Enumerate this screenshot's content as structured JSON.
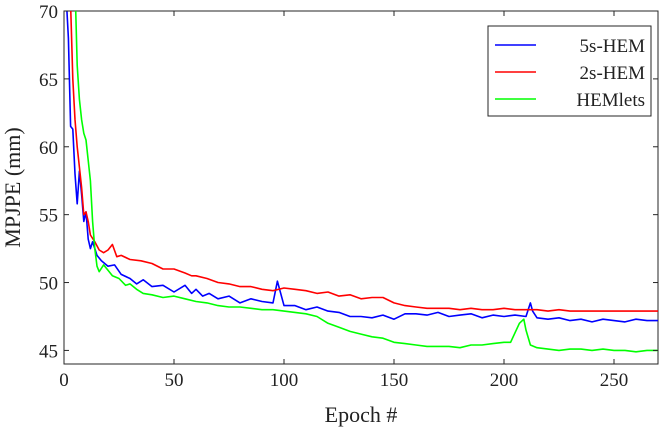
{
  "chart_data": {
    "type": "line",
    "xlabel": "Epoch #",
    "ylabel": "MPJPE (mm)",
    "xlim": [
      0,
      270
    ],
    "ylim": [
      44,
      70
    ],
    "xticks": [
      0,
      50,
      100,
      150,
      200,
      250
    ],
    "yticks": [
      45,
      50,
      55,
      60,
      65,
      70
    ],
    "grid": false,
    "legend_position": "top-right",
    "series": [
      {
        "name": "5s-HEM",
        "color": "#0000ff",
        "points": [
          [
            1,
            71
          ],
          [
            2,
            68
          ],
          [
            3,
            61.5
          ],
          [
            4,
            61.3
          ],
          [
            5,
            58
          ],
          [
            6,
            55.8
          ],
          [
            7,
            58.2
          ],
          [
            8,
            56.5
          ],
          [
            9,
            54.5
          ],
          [
            10,
            55.2
          ],
          [
            11,
            53.2
          ],
          [
            12,
            52.5
          ],
          [
            13,
            53
          ],
          [
            15,
            52
          ],
          [
            17,
            51.6
          ],
          [
            20,
            51.2
          ],
          [
            23,
            51.3
          ],
          [
            26,
            50.6
          ],
          [
            30,
            50.3
          ],
          [
            33,
            49.9
          ],
          [
            36,
            50.2
          ],
          [
            40,
            49.7
          ],
          [
            45,
            49.8
          ],
          [
            50,
            49.3
          ],
          [
            55,
            49.8
          ],
          [
            58,
            49.2
          ],
          [
            60,
            49.5
          ],
          [
            63,
            49
          ],
          [
            66,
            49.2
          ],
          [
            70,
            48.8
          ],
          [
            75,
            49
          ],
          [
            80,
            48.5
          ],
          [
            85,
            48.8
          ],
          [
            90,
            48.6
          ],
          [
            95,
            48.5
          ],
          [
            97,
            50.1
          ],
          [
            100,
            48.3
          ],
          [
            105,
            48.3
          ],
          [
            110,
            48
          ],
          [
            115,
            48.2
          ],
          [
            120,
            47.9
          ],
          [
            125,
            47.8
          ],
          [
            130,
            47.5
          ],
          [
            135,
            47.5
          ],
          [
            140,
            47.4
          ],
          [
            145,
            47.6
          ],
          [
            150,
            47.3
          ],
          [
            155,
            47.7
          ],
          [
            160,
            47.7
          ],
          [
            165,
            47.6
          ],
          [
            170,
            47.8
          ],
          [
            175,
            47.5
          ],
          [
            180,
            47.6
          ],
          [
            185,
            47.7
          ],
          [
            190,
            47.4
          ],
          [
            195,
            47.6
          ],
          [
            200,
            47.5
          ],
          [
            205,
            47.6
          ],
          [
            210,
            47.5
          ],
          [
            212,
            48.5
          ],
          [
            213,
            47.9
          ],
          [
            215,
            47.4
          ],
          [
            220,
            47.3
          ],
          [
            225,
            47.4
          ],
          [
            230,
            47.2
          ],
          [
            235,
            47.3
          ],
          [
            240,
            47.1
          ],
          [
            245,
            47.3
          ],
          [
            250,
            47.2
          ],
          [
            255,
            47.1
          ],
          [
            260,
            47.3
          ],
          [
            265,
            47.2
          ],
          [
            270,
            47.2
          ]
        ]
      },
      {
        "name": "2s-HEM",
        "color": "#ff0000",
        "points": [
          [
            1,
            71
          ],
          [
            3,
            70.5
          ],
          [
            4,
            65
          ],
          [
            5,
            62
          ],
          [
            6,
            60
          ],
          [
            7,
            58.5
          ],
          [
            8,
            57
          ],
          [
            9,
            55
          ],
          [
            10,
            55.2
          ],
          [
            11,
            54.5
          ],
          [
            12,
            53.5
          ],
          [
            14,
            53
          ],
          [
            16,
            52.4
          ],
          [
            18,
            52.2
          ],
          [
            20,
            52.4
          ],
          [
            22,
            52.8
          ],
          [
            24,
            51.9
          ],
          [
            26,
            52
          ],
          [
            30,
            51.7
          ],
          [
            35,
            51.6
          ],
          [
            40,
            51.4
          ],
          [
            45,
            51
          ],
          [
            50,
            51
          ],
          [
            55,
            50.7
          ],
          [
            58,
            50.5
          ],
          [
            60,
            50.5
          ],
          [
            65,
            50.3
          ],
          [
            70,
            50
          ],
          [
            75,
            49.9
          ],
          [
            80,
            49.7
          ],
          [
            85,
            49.7
          ],
          [
            90,
            49.5
          ],
          [
            95,
            49.4
          ],
          [
            100,
            49.6
          ],
          [
            105,
            49.5
          ],
          [
            110,
            49.4
          ],
          [
            115,
            49.2
          ],
          [
            120,
            49.3
          ],
          [
            125,
            49
          ],
          [
            130,
            49.1
          ],
          [
            135,
            48.8
          ],
          [
            140,
            48.9
          ],
          [
            145,
            48.9
          ],
          [
            150,
            48.5
          ],
          [
            155,
            48.3
          ],
          [
            160,
            48.2
          ],
          [
            165,
            48.1
          ],
          [
            170,
            48.1
          ],
          [
            175,
            48.1
          ],
          [
            180,
            48
          ],
          [
            185,
            48.1
          ],
          [
            190,
            48
          ],
          [
            195,
            48
          ],
          [
            200,
            48.1
          ],
          [
            205,
            48
          ],
          [
            210,
            48
          ],
          [
            215,
            48
          ],
          [
            220,
            47.9
          ],
          [
            225,
            48
          ],
          [
            230,
            47.9
          ],
          [
            235,
            47.9
          ],
          [
            240,
            47.9
          ],
          [
            245,
            47.9
          ],
          [
            250,
            47.9
          ],
          [
            255,
            47.9
          ],
          [
            260,
            47.9
          ],
          [
            265,
            47.9
          ],
          [
            270,
            47.9
          ]
        ]
      },
      {
        "name": "HEMlets",
        "color": "#00ff00",
        "points": [
          [
            1,
            71
          ],
          [
            2,
            70.5
          ],
          [
            4,
            70.5
          ],
          [
            5,
            72
          ],
          [
            6,
            66
          ],
          [
            7,
            63.5
          ],
          [
            8,
            62
          ],
          [
            9,
            61
          ],
          [
            10,
            60.5
          ],
          [
            11,
            59
          ],
          [
            12,
            57.5
          ],
          [
            13,
            54.5
          ],
          [
            14,
            52.5
          ],
          [
            15,
            51.2
          ],
          [
            16,
            50.8
          ],
          [
            18,
            51.3
          ],
          [
            20,
            50.9
          ],
          [
            22,
            50.5
          ],
          [
            25,
            50.3
          ],
          [
            28,
            49.8
          ],
          [
            30,
            49.9
          ],
          [
            33,
            49.5
          ],
          [
            36,
            49.2
          ],
          [
            40,
            49.1
          ],
          [
            45,
            48.9
          ],
          [
            50,
            49
          ],
          [
            55,
            48.8
          ],
          [
            60,
            48.6
          ],
          [
            65,
            48.5
          ],
          [
            70,
            48.3
          ],
          [
            75,
            48.2
          ],
          [
            80,
            48.2
          ],
          [
            85,
            48.1
          ],
          [
            90,
            48
          ],
          [
            95,
            48
          ],
          [
            100,
            47.9
          ],
          [
            105,
            47.8
          ],
          [
            110,
            47.7
          ],
          [
            115,
            47.5
          ],
          [
            120,
            47
          ],
          [
            125,
            46.7
          ],
          [
            130,
            46.4
          ],
          [
            135,
            46.2
          ],
          [
            140,
            46
          ],
          [
            145,
            45.9
          ],
          [
            150,
            45.6
          ],
          [
            155,
            45.5
          ],
          [
            160,
            45.4
          ],
          [
            165,
            45.3
          ],
          [
            170,
            45.3
          ],
          [
            175,
            45.3
          ],
          [
            180,
            45.2
          ],
          [
            185,
            45.4
          ],
          [
            190,
            45.4
          ],
          [
            195,
            45.5
          ],
          [
            200,
            45.6
          ],
          [
            203,
            45.6
          ],
          [
            205,
            46.3
          ],
          [
            207,
            47
          ],
          [
            209,
            47.3
          ],
          [
            210,
            46.5
          ],
          [
            212,
            45.4
          ],
          [
            215,
            45.2
          ],
          [
            220,
            45.1
          ],
          [
            225,
            45
          ],
          [
            230,
            45.1
          ],
          [
            235,
            45.1
          ],
          [
            240,
            45
          ],
          [
            245,
            45.1
          ],
          [
            250,
            45
          ],
          [
            255,
            45
          ],
          [
            260,
            44.9
          ],
          [
            265,
            45
          ],
          [
            270,
            45
          ]
        ]
      }
    ]
  }
}
